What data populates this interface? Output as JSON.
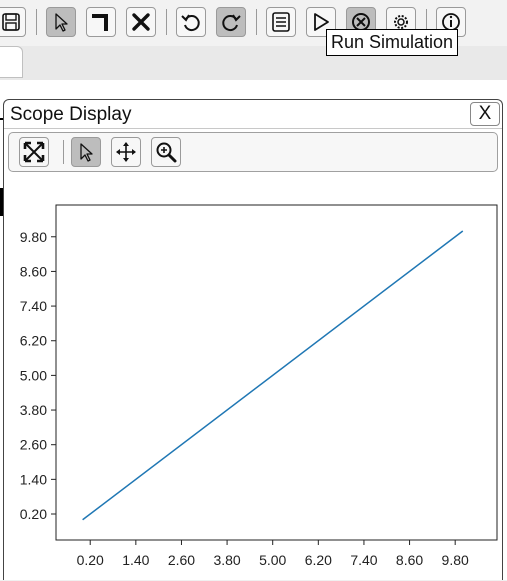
{
  "toolbar": {
    "buttons": [
      {
        "name": "save-button",
        "icon": "save-icon"
      },
      {
        "name": "select-button",
        "icon": "pointer-icon",
        "active": true
      },
      {
        "name": "wire-button",
        "icon": "wire-icon"
      },
      {
        "name": "delete-button",
        "icon": "delete-icon"
      },
      {
        "name": "undo-button",
        "icon": "undo-icon"
      },
      {
        "name": "redo-button",
        "icon": "redo-icon"
      },
      {
        "name": "properties-button",
        "icon": "list-icon"
      },
      {
        "name": "run-simulation-button",
        "icon": "play-icon"
      },
      {
        "name": "stop-simulation-button",
        "icon": "stop-icon"
      },
      {
        "name": "settings-button",
        "icon": "gear-icon"
      },
      {
        "name": "info-button",
        "icon": "info-icon"
      }
    ],
    "tooltip": "Run Simulation"
  },
  "scope": {
    "title": "Scope Display",
    "close_label": "X",
    "toolbar": [
      {
        "name": "fit-view-button",
        "icon": "fit-arrows-icon"
      },
      {
        "name": "select-mode-button",
        "icon": "pointer-icon",
        "active": true
      },
      {
        "name": "pan-button",
        "icon": "move-arrows-icon"
      },
      {
        "name": "zoom-button",
        "icon": "zoom-in-icon"
      }
    ]
  },
  "chart_data": {
    "type": "line",
    "title": "",
    "xlabel": "",
    "ylabel": "",
    "x_ticks": [
      "0.20",
      "1.40",
      "2.60",
      "3.80",
      "5.00",
      "6.20",
      "7.40",
      "8.60",
      "9.80"
    ],
    "y_ticks": [
      "0.20",
      "1.40",
      "2.60",
      "3.80",
      "5.00",
      "6.20",
      "7.40",
      "8.60",
      "9.80"
    ],
    "xlim": [
      -0.7,
      10.9
    ],
    "ylim": [
      -0.7,
      10.9
    ],
    "series": [
      {
        "x": [
          0.0,
          10.0
        ],
        "y": [
          0.0,
          10.0
        ],
        "color": "#1f77b4"
      }
    ],
    "grid": false,
    "legend": "none"
  }
}
